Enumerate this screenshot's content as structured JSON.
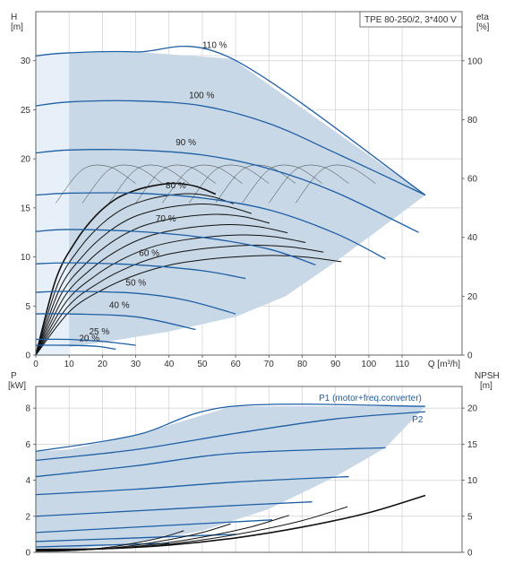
{
  "chart_data": [
    {
      "type": "line",
      "title": "TPE 80-250/2, 3*400 V",
      "xlabel": "Q [m³/h]",
      "ylabel": "H\n[m]",
      "ylabel_right": "eta\n[%]",
      "xlim": [
        0,
        128
      ],
      "ylim": [
        0,
        35
      ],
      "ylim_right": [
        0,
        116.7
      ],
      "xticks": [
        0,
        10,
        20,
        30,
        40,
        50,
        60,
        70,
        80,
        90,
        100,
        110
      ],
      "yticks": [
        0,
        5,
        10,
        15,
        20,
        25,
        30
      ],
      "yticks_right": [
        0,
        20,
        40,
        60,
        80,
        100
      ],
      "grid": true,
      "colors": {
        "curve": "#1d5fa5",
        "envelope": "#c9d8e6",
        "efficiency": "#000000"
      },
      "series": [
        {
          "name": "110 %",
          "label_at": [
            50,
            31.3
          ],
          "x": [
            0,
            10,
            30,
            59,
            117
          ],
          "y": [
            30.5,
            30.8,
            30.9,
            30.2,
            16.3
          ]
        },
        {
          "name": "100 %",
          "label_at": [
            46,
            26.2
          ],
          "x": [
            0,
            10,
            30,
            50,
            70,
            90,
            117
          ],
          "y": [
            25.4,
            25.8,
            25.9,
            25.4,
            23.6,
            20.6,
            16.3
          ]
        },
        {
          "name": "90 %",
          "label_at": [
            42,
            21.4
          ],
          "x": [
            0,
            10,
            30,
            50,
            70,
            90,
            115
          ],
          "y": [
            20.6,
            20.9,
            20.9,
            20.4,
            19.0,
            16.6,
            12.5
          ]
        },
        {
          "name": "80 %",
          "label_at": [
            39,
            17.0
          ],
          "x": [
            0,
            10,
            30,
            50,
            70,
            90,
            105
          ],
          "y": [
            16.3,
            16.5,
            16.5,
            16.0,
            14.8,
            12.4,
            9.8
          ]
        },
        {
          "name": "70 %",
          "label_at": [
            36,
            13.6
          ],
          "x": [
            0,
            10,
            30,
            50,
            70,
            84
          ],
          "y": [
            12.6,
            12.8,
            12.6,
            12.0,
            10.8,
            9.2
          ]
        },
        {
          "name": "60 %",
          "label_at": [
            31,
            10.1
          ],
          "x": [
            0,
            10,
            30,
            50,
            63
          ],
          "y": [
            9.3,
            9.4,
            9.2,
            8.6,
            7.8
          ]
        },
        {
          "name": "50 %",
          "label_at": [
            27,
            7.1
          ],
          "x": [
            0,
            10,
            30,
            45,
            60
          ],
          "y": [
            6.4,
            6.5,
            6.3,
            5.6,
            4.2
          ]
        },
        {
          "name": "40 %",
          "label_at": [
            22,
            4.8
          ],
          "x": [
            0,
            10,
            30,
            48
          ],
          "y": [
            4.2,
            4.2,
            3.9,
            2.6
          ]
        },
        {
          "name": "25 %",
          "label_at": [
            16,
            2.1
          ],
          "x": [
            0,
            10,
            20,
            30
          ],
          "y": [
            1.6,
            1.6,
            1.4,
            1.0
          ]
        },
        {
          "name": "20 %",
          "label_at": [
            13,
            1.4
          ],
          "x": [
            0,
            10,
            18,
            24
          ],
          "y": [
            1.0,
            1.0,
            0.9,
            0.6
          ]
        }
      ],
      "efficiency_series_y": {
        "x": [
          0,
          10,
          20,
          30,
          40,
          50,
          60,
          70,
          80,
          90
        ],
        "y": [
          0,
          7.7,
          11.6,
          14.2,
          15.9,
          16.8,
          17.3,
          17.5,
          17.2,
          16.4
        ]
      },
      "envelope": {
        "x": [
          0,
          10,
          30,
          59,
          117,
          90,
          75,
          60,
          40,
          20,
          10,
          0
        ],
        "y": [
          30.5,
          30.8,
          30.9,
          30.2,
          16.3,
          9.5,
          6.0,
          3.9,
          2.4,
          1.3,
          0.8,
          0
        ]
      },
      "shaded_low_region": {
        "x": [
          0,
          10,
          10,
          0
        ],
        "y": [
          30.5,
          30.8,
          0,
          0
        ]
      }
    },
    {
      "type": "line",
      "title": "",
      "xlabel": "",
      "ylabel": "P\n[kW]",
      "ylabel_right": "NPSH\n[m]",
      "xlim": [
        0,
        128
      ],
      "ylim": [
        0,
        9.2
      ],
      "ylim_right": [
        0,
        23
      ],
      "yticks": [
        0,
        2,
        4,
        6,
        8
      ],
      "yticks_right": [
        0,
        5,
        10,
        15,
        20
      ],
      "grid": true,
      "colors": {
        "curve": "#1d5fa5",
        "npsh": "#000000"
      },
      "series": [
        {
          "name": "P1 (motor+freq.converter)",
          "label_at": [
            85,
            8.4
          ],
          "x": [
            0,
            30,
            59,
            117
          ],
          "y": [
            5.6,
            6.5,
            8.1,
            8.1
          ]
        },
        {
          "name": "P2",
          "label_at": [
            113,
            7.2
          ],
          "x": [
            0,
            30,
            60,
            90,
            117
          ],
          "y": [
            5.1,
            5.7,
            6.6,
            7.4,
            7.8
          ]
        },
        {
          "name": "",
          "x": [
            0,
            30,
            60,
            105
          ],
          "y": [
            4.2,
            4.8,
            5.5,
            5.8
          ]
        },
        {
          "name": "",
          "x": [
            0,
            30,
            60,
            94
          ],
          "y": [
            3.2,
            3.5,
            3.9,
            4.2
          ]
        },
        {
          "name": "",
          "x": [
            0,
            30,
            60,
            83
          ],
          "y": [
            2.0,
            2.3,
            2.6,
            2.8
          ]
        },
        {
          "name": "",
          "x": [
            0,
            30,
            71
          ],
          "y": [
            1.1,
            1.4,
            1.8
          ]
        },
        {
          "name": "",
          "x": [
            0,
            30,
            60
          ],
          "y": [
            0.6,
            0.8,
            1.0
          ]
        },
        {
          "name": "",
          "x": [
            0,
            20,
            40
          ],
          "y": [
            0.3,
            0.4,
            0.5
          ]
        }
      ],
      "npsh_series_y": {
        "x": [
          0,
          20,
          40,
          60,
          80,
          100,
          117
        ],
        "y": [
          0.4,
          0.5,
          1.0,
          2.0,
          3.5,
          5.5,
          7.9
        ]
      },
      "envelope": {
        "x": [
          0,
          10,
          30,
          59,
          117,
          105,
          90,
          70,
          50,
          30,
          10,
          0
        ],
        "y": [
          5.6,
          5.7,
          6.5,
          8.1,
          8.1,
          5.8,
          4.2,
          2.4,
          1.2,
          0.5,
          0.2,
          0
        ]
      }
    }
  ]
}
